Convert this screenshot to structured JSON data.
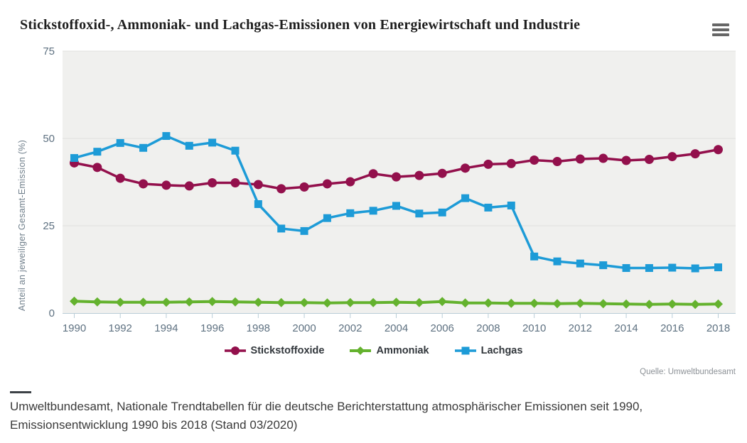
{
  "header": {
    "title": "Stickstoffoxid-, Ammoniak- und Lachgas-Emissionen von Energiewirtschaft und Industrie",
    "menu_icon": "hamburger-menu-icon"
  },
  "chart_data": {
    "type": "line",
    "title": "Stickstoffoxid-, Ammoniak- und Lachgas-Emissionen von Energiewirtschaft und Industrie",
    "xlabel": "",
    "ylabel": "Anteil an jeweiliger Gesamt-Emission (%)",
    "ylim": [
      0,
      75
    ],
    "yticks": [
      0,
      25,
      50,
      75
    ],
    "x": [
      1990,
      1991,
      1992,
      1993,
      1994,
      1995,
      1996,
      1997,
      1998,
      1999,
      2000,
      2001,
      2002,
      2003,
      2004,
      2005,
      2006,
      2007,
      2008,
      2009,
      2010,
      2011,
      2012,
      2013,
      2014,
      2015,
      2016,
      2017,
      2018
    ],
    "xtick_labels": [
      1990,
      1992,
      1994,
      1996,
      1998,
      2000,
      2002,
      2004,
      2006,
      2008,
      2010,
      2012,
      2014,
      2016,
      2018
    ],
    "grid": true,
    "legend_position": "bottom",
    "series": [
      {
        "name": "Stickstoffoxide",
        "marker": "circle",
        "color": "#93104c",
        "width": 3.5,
        "values": [
          43.0,
          41.7,
          38.6,
          37.0,
          36.6,
          36.4,
          37.3,
          37.3,
          36.8,
          35.6,
          36.1,
          37.0,
          37.6,
          39.9,
          39.0,
          39.4,
          40.0,
          41.5,
          42.6,
          42.8,
          43.8,
          43.4,
          44.1,
          44.3,
          43.7,
          44.0,
          44.8,
          45.6,
          46.8
        ]
      },
      {
        "name": "Ammoniak",
        "marker": "diamond",
        "color": "#64b22e",
        "width": 4,
        "values": [
          3.4,
          3.2,
          3.1,
          3.1,
          3.1,
          3.2,
          3.3,
          3.2,
          3.1,
          3.0,
          3.0,
          2.9,
          3.0,
          3.0,
          3.1,
          3.0,
          3.3,
          2.9,
          2.9,
          2.8,
          2.8,
          2.7,
          2.8,
          2.7,
          2.6,
          2.5,
          2.6,
          2.5,
          2.6
        ]
      },
      {
        "name": "Lachgas",
        "marker": "square",
        "color": "#1d9bd7",
        "width": 3.5,
        "values": [
          44.4,
          46.2,
          48.7,
          47.3,
          50.7,
          47.9,
          48.8,
          46.5,
          31.2,
          24.2,
          23.5,
          27.2,
          28.6,
          29.3,
          30.7,
          28.5,
          28.8,
          32.9,
          30.2,
          30.8,
          16.2,
          14.8,
          14.2,
          13.7,
          12.9,
          12.9,
          13.0,
          12.8,
          13.1
        ]
      }
    ],
    "colors": {
      "plot_bg": "#f0f0ee",
      "grid": "#e0e0de",
      "axis": "#b9cdd7"
    }
  },
  "source": {
    "text": "Quelle: Umweltbundesamt"
  },
  "caption": {
    "line1": "Umweltbundesamt, Nationale Trendtabellen für die deutsche Berichterstattung atmosphärischer Emissionen seit 1990,",
    "line2": "Emissionsentwicklung 1990 bis 2018 (Stand 03/2020)"
  }
}
